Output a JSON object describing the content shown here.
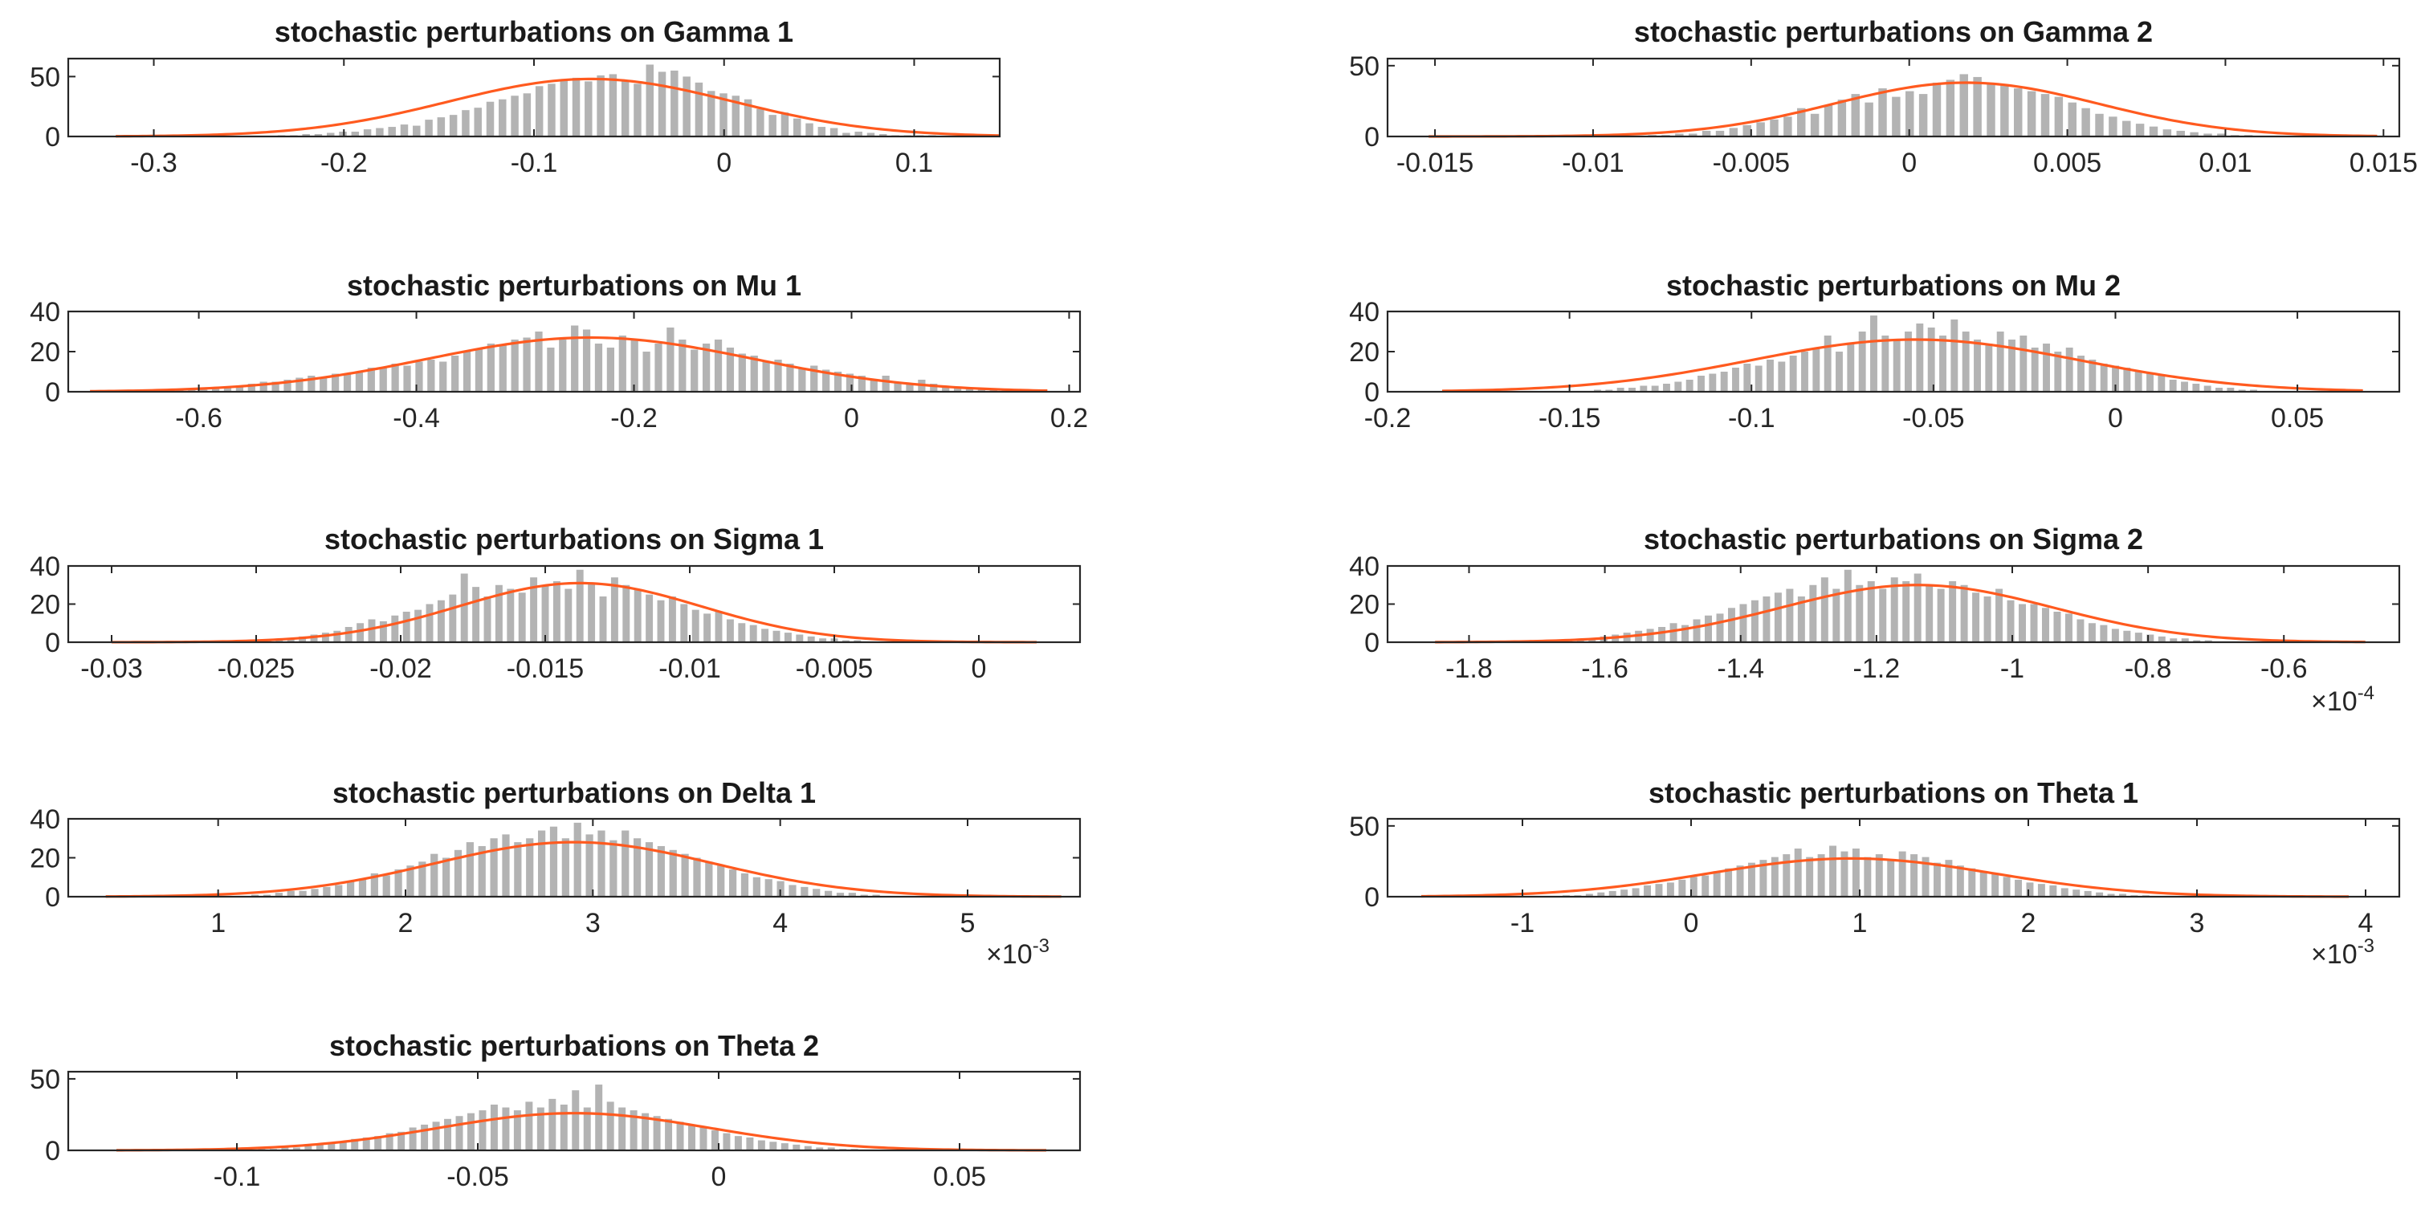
{
  "colors": {
    "bars": "#b3b3b3",
    "fit_curve": "#ff5a1f",
    "axes": "#262626",
    "background": "#ffffff"
  },
  "chart_data": [
    {
      "type": "bar",
      "title": "stochastic perturbations on Gamma 1",
      "xlim": [
        -0.345,
        0.145
      ],
      "ylim": [
        0,
        65
      ],
      "xticks": [
        -0.3,
        -0.2,
        -0.1,
        0,
        0.1
      ],
      "xticklabels": [
        "-0.3",
        "-0.2",
        "-0.1",
        "0",
        "0.1"
      ],
      "yticks": [
        0,
        50
      ],
      "yticklabels": [
        "0",
        "50"
      ],
      "exponent": "",
      "fit": {
        "mean": -0.07,
        "std": 0.075,
        "peak": 48
      },
      "bins": {
        "start": -0.32,
        "end": 0.145,
        "count": 72
      },
      "values": [
        0,
        0,
        0,
        0,
        0,
        0,
        0,
        0,
        0,
        0,
        0,
        0,
        0,
        1,
        1,
        2,
        2,
        3,
        4,
        4,
        6,
        7,
        8,
        10,
        9,
        14,
        16,
        18,
        22,
        24,
        29,
        31,
        34,
        36,
        42,
        44,
        47,
        49,
        46,
        51,
        52,
        47,
        44,
        60,
        54,
        55,
        50,
        45,
        38,
        36,
        34,
        31,
        23,
        18,
        20,
        15,
        11,
        8,
        7,
        3,
        4,
        3,
        2,
        1,
        1,
        1,
        1,
        0,
        0,
        0,
        0,
        0
      ]
    },
    {
      "type": "bar",
      "title": "stochastic perturbations on Gamma 2",
      "xlim": [
        -0.0165,
        0.0155
      ],
      "ylim": [
        0,
        55
      ],
      "xticks": [
        -0.015,
        -0.01,
        -0.005,
        0,
        0.005,
        0.01,
        0.015
      ],
      "xticklabels": [
        "-0.015",
        "-0.01",
        "-0.005",
        "0",
        "0.005",
        "0.01",
        "0.015"
      ],
      "yticks": [
        0,
        50
      ],
      "yticklabels": [
        "0",
        "50"
      ],
      "exponent": "",
      "fit": {
        "mean": 0.0018,
        "std": 0.0042,
        "peak": 38
      },
      "bins": {
        "start": -0.0152,
        "end": 0.0148,
        "count": 70
      },
      "values": [
        0,
        0,
        0,
        0,
        0,
        0,
        0,
        0,
        0,
        0,
        0,
        0,
        0,
        0,
        0,
        0,
        1,
        1,
        2,
        2,
        4,
        4,
        6,
        8,
        10,
        12,
        14,
        20,
        16,
        22,
        26,
        30,
        24,
        34,
        28,
        32,
        30,
        38,
        40,
        44,
        42,
        38,
        36,
        34,
        32,
        30,
        28,
        24,
        20,
        16,
        14,
        11,
        9,
        7,
        5,
        4,
        3,
        2,
        2,
        1,
        1,
        0,
        0,
        0,
        0,
        0,
        0,
        0,
        0,
        0
      ]
    },
    {
      "type": "bar",
      "title": "stochastic perturbations on Mu 1",
      "xlim": [
        -0.72,
        0.21
      ],
      "ylim": [
        0,
        40
      ],
      "xticks": [
        -0.6,
        -0.4,
        -0.2,
        0,
        0.2
      ],
      "xticklabels": [
        "-0.6",
        "-0.4",
        "-0.2",
        "0",
        "0.2"
      ],
      "yticks": [
        0,
        20,
        40
      ],
      "yticklabels": [
        "0",
        "20",
        "40"
      ],
      "exponent": "",
      "fit": {
        "mean": -0.24,
        "std": 0.15,
        "peak": 27
      },
      "bins": {
        "start": -0.7,
        "end": 0.18,
        "count": 80
      },
      "values": [
        0,
        0,
        0,
        0,
        0,
        0,
        0,
        1,
        1,
        1,
        2,
        2,
        3,
        4,
        5,
        5,
        6,
        7,
        8,
        7,
        9,
        9,
        10,
        12,
        12,
        14,
        13,
        15,
        16,
        15,
        18,
        20,
        21,
        24,
        23,
        26,
        27,
        30,
        22,
        26,
        33,
        31,
        24,
        22,
        28,
        26,
        20,
        24,
        32,
        26,
        21,
        24,
        26,
        22,
        19,
        18,
        15,
        16,
        14,
        12,
        13,
        11,
        10,
        9,
        8,
        6,
        8,
        5,
        4,
        6,
        4,
        3,
        2,
        2,
        1,
        1,
        1,
        0,
        0,
        0
      ]
    },
    {
      "type": "bar",
      "title": "stochastic perturbations on Mu 2",
      "xlim": [
        -0.2,
        0.078
      ],
      "ylim": [
        0,
        40
      ],
      "xticks": [
        -0.2,
        -0.15,
        -0.1,
        -0.05,
        0,
        0.05
      ],
      "xticklabels": [
        "-0.2",
        "-0.15",
        "-0.1",
        "-0.05",
        "0",
        "0.05"
      ],
      "yticks": [
        0,
        20,
        40
      ],
      "yticklabels": [
        "0",
        "20",
        "40"
      ],
      "exponent": "",
      "fit": {
        "mean": -0.055,
        "std": 0.045,
        "peak": 26
      },
      "bins": {
        "start": -0.185,
        "end": 0.068,
        "count": 80
      },
      "values": [
        0,
        0,
        0,
        0,
        0,
        0,
        0,
        0,
        0,
        0,
        0,
        0,
        0,
        1,
        1,
        2,
        2,
        3,
        3,
        4,
        5,
        6,
        8,
        9,
        10,
        12,
        14,
        13,
        16,
        15,
        18,
        20,
        22,
        28,
        20,
        24,
        30,
        38,
        28,
        26,
        30,
        34,
        32,
        28,
        36,
        30,
        26,
        24,
        30,
        26,
        28,
        22,
        24,
        20,
        22,
        18,
        16,
        14,
        13,
        12,
        10,
        9,
        8,
        6,
        5,
        4,
        3,
        2,
        2,
        1,
        1,
        0,
        0,
        0,
        0,
        0,
        0,
        0,
        0,
        0
      ]
    },
    {
      "type": "bar",
      "title": "stochastic perturbations on Sigma 1",
      "xlim": [
        -0.0315,
        0.0035
      ],
      "ylim": [
        0,
        40
      ],
      "xticks": [
        -0.03,
        -0.025,
        -0.02,
        -0.015,
        -0.01,
        -0.005,
        0
      ],
      "xticklabels": [
        "-0.03",
        "-0.025",
        "-0.02",
        "-0.015",
        "-0.01",
        "-0.005",
        "0"
      ],
      "yticks": [
        0,
        20,
        40
      ],
      "yticklabels": [
        "0",
        "20",
        "40"
      ],
      "exponent": "",
      "fit": {
        "mean": -0.0138,
        "std": 0.0042,
        "peak": 31
      },
      "bins": {
        "start": -0.03,
        "end": 0.002,
        "count": 80
      },
      "values": [
        0,
        0,
        0,
        0,
        0,
        0,
        0,
        0,
        0,
        0,
        0,
        0,
        0,
        1,
        1,
        2,
        3,
        4,
        5,
        6,
        8,
        10,
        12,
        11,
        14,
        16,
        17,
        20,
        22,
        25,
        36,
        29,
        24,
        30,
        28,
        26,
        34,
        30,
        32,
        28,
        38,
        31,
        24,
        34,
        30,
        28,
        25,
        22,
        24,
        20,
        17,
        15,
        16,
        12,
        10,
        9,
        7,
        6,
        5,
        4,
        3,
        2,
        2,
        1,
        1,
        0,
        0,
        0,
        0,
        0,
        0,
        0,
        0,
        0,
        0,
        0,
        0,
        0,
        0,
        0
      ]
    },
    {
      "type": "bar",
      "title": "stochastic perturbations on Sigma 2",
      "xlim": [
        -1.92,
        -0.43
      ],
      "ylim": [
        0,
        40
      ],
      "xticks": [
        -1.8,
        -1.6,
        -1.4,
        -1.2,
        -1,
        -0.8,
        -0.6
      ],
      "xticklabels": [
        "-1.8",
        "-1.6",
        "-1.4",
        "-1.2",
        "-1",
        "-0.8",
        "-0.6"
      ],
      "yticks": [
        0,
        20,
        40
      ],
      "yticklabels": [
        "0",
        "20",
        "40"
      ],
      "exponent": "×10-4",
      "exponent_base": "×10",
      "exponent_power": "-4",
      "fit": {
        "mean": -1.14,
        "std": 0.2,
        "peak": 30
      },
      "bins": {
        "start": -1.85,
        "end": -0.48,
        "count": 80
      },
      "values": [
        0,
        0,
        0,
        0,
        0,
        0,
        0,
        0,
        0,
        0,
        0,
        1,
        1,
        2,
        3,
        4,
        5,
        6,
        7,
        8,
        10,
        9,
        12,
        14,
        15,
        18,
        20,
        22,
        24,
        26,
        28,
        24,
        30,
        34,
        28,
        38,
        30,
        32,
        28,
        34,
        32,
        36,
        30,
        28,
        32,
        30,
        26,
        24,
        28,
        22,
        20,
        20,
        18,
        16,
        15,
        12,
        10,
        9,
        7,
        6,
        5,
        4,
        3,
        2,
        2,
        1,
        1,
        0,
        0,
        0,
        0,
        0,
        0,
        0,
        0,
        0,
        0,
        0,
        0,
        0
      ]
    },
    {
      "type": "bar",
      "title": "stochastic perturbations on Delta 1",
      "xlim": [
        0.0002,
        0.0056
      ],
      "ylim": [
        0,
        40
      ],
      "xticks": [
        0.001,
        0.002,
        0.003,
        0.004,
        0.005
      ],
      "xticklabels": [
        "1",
        "2",
        "3",
        "4",
        "5"
      ],
      "yticks": [
        0,
        20,
        40
      ],
      "yticklabels": [
        "0",
        "20",
        "40"
      ],
      "exponent": "×10-3",
      "exponent_base": "×10",
      "exponent_power": "-3",
      "fit": {
        "mean": 0.0029,
        "std": 0.00075,
        "peak": 28
      },
      "bins": {
        "start": 0.0004,
        "end": 0.0055,
        "count": 80
      },
      "values": [
        0,
        0,
        0,
        0,
        0,
        0,
        0,
        0,
        0,
        0,
        0,
        0,
        1,
        1,
        2,
        3,
        3,
        4,
        5,
        6,
        8,
        9,
        12,
        11,
        14,
        16,
        18,
        22,
        20,
        24,
        28,
        26,
        30,
        32,
        28,
        30,
        34,
        36,
        30,
        38,
        32,
        34,
        29,
        34,
        30,
        28,
        26,
        24,
        22,
        20,
        18,
        16,
        14,
        12,
        10,
        9,
        8,
        6,
        5,
        4,
        3,
        2,
        2,
        1,
        1,
        0,
        0,
        0,
        0,
        0,
        0,
        0,
        0,
        0,
        0,
        0,
        0,
        0,
        0,
        0
      ]
    },
    {
      "type": "bar",
      "title": "stochastic perturbations on Theta 1",
      "xlim": [
        -0.0018,
        0.0042
      ],
      "ylim": [
        0,
        55
      ],
      "xticks": [
        -0.001,
        0,
        0.001,
        0.002,
        0.003,
        0.004
      ],
      "xticklabels": [
        "-1",
        "0",
        "1",
        "2",
        "3",
        "4"
      ],
      "yticks": [
        0,
        50
      ],
      "yticklabels": [
        "0",
        "50"
      ],
      "exponent": "×10-3",
      "exponent_base": "×10",
      "exponent_power": "-3",
      "fit": {
        "mean": 0.00095,
        "std": 0.00085,
        "peak": 27
      },
      "bins": {
        "start": -0.0016,
        "end": 0.0039,
        "count": 80
      },
      "values": [
        0,
        0,
        0,
        0,
        0,
        0,
        0,
        0,
        0,
        0,
        0,
        0,
        1,
        1,
        2,
        3,
        4,
        5,
        6,
        8,
        9,
        10,
        12,
        14,
        15,
        18,
        20,
        22,
        24,
        26,
        28,
        30,
        34,
        28,
        30,
        36,
        32,
        34,
        28,
        30,
        26,
        32,
        30,
        28,
        24,
        26,
        22,
        20,
        18,
        16,
        14,
        12,
        10,
        9,
        8,
        6,
        5,
        4,
        3,
        2,
        2,
        1,
        1,
        0,
        0,
        0,
        0,
        0,
        0,
        0,
        0,
        0,
        0,
        0,
        0,
        0,
        0,
        0,
        0,
        0
      ]
    },
    {
      "type": "bar",
      "title": "stochastic perturbations on Theta 2",
      "xlim": [
        -0.135,
        0.075
      ],
      "ylim": [
        0,
        55
      ],
      "xticks": [
        -0.1,
        -0.05,
        0,
        0.05
      ],
      "xticklabels": [
        "-0.1",
        "-0.05",
        "0",
        "0.05"
      ],
      "yticks": [
        0,
        50
      ],
      "yticklabels": [
        "0",
        "50"
      ],
      "exponent": "",
      "fit": {
        "mean": -0.03,
        "std": 0.028,
        "peak": 26
      },
      "bins": {
        "start": -0.125,
        "end": 0.068,
        "count": 80
      },
      "values": [
        0,
        0,
        0,
        0,
        0,
        0,
        0,
        0,
        0,
        0,
        0,
        0,
        1,
        1,
        2,
        2,
        3,
        4,
        5,
        6,
        8,
        9,
        10,
        12,
        13,
        16,
        18,
        20,
        22,
        24,
        26,
        28,
        32,
        30,
        28,
        34,
        30,
        36,
        32,
        42,
        30,
        46,
        34,
        30,
        28,
        26,
        24,
        22,
        20,
        18,
        16,
        14,
        12,
        10,
        9,
        7,
        6,
        5,
        4,
        3,
        2,
        2,
        1,
        1,
        0,
        0,
        0,
        0,
        0,
        0,
        0,
        0,
        0,
        0,
        0,
        0,
        0,
        0,
        0,
        0
      ]
    }
  ]
}
